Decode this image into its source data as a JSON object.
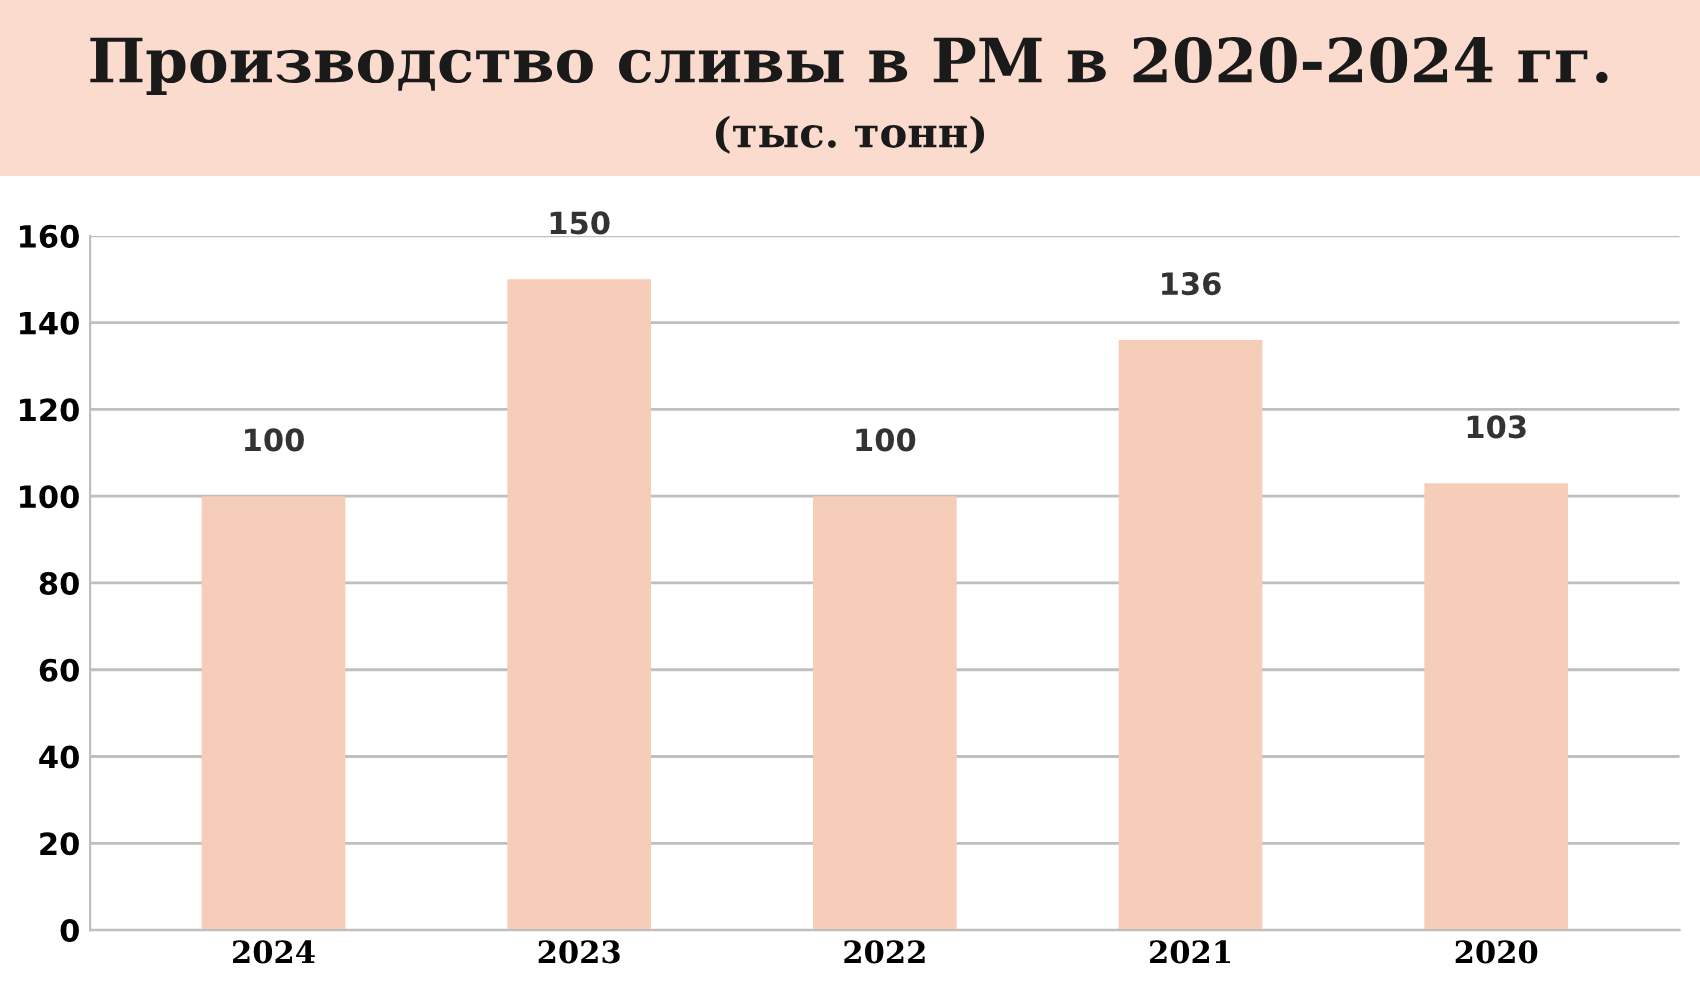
{
  "chart_data": {
    "type": "bar",
    "title": "Производство сливы в РМ в 2020-2024 гг.",
    "subtitle": "(тыс. тонн)",
    "categories": [
      "2024",
      "2023",
      "2022",
      "2021",
      "2020"
    ],
    "values": [
      100,
      150,
      100,
      136,
      103
    ],
    "color": "#f5cdb8",
    "ylim": [
      0,
      160
    ],
    "yticks": [
      0,
      20,
      40,
      60,
      80,
      100,
      120,
      140,
      160
    ],
    "grid": "y",
    "data_labels": true,
    "legend": false
  }
}
